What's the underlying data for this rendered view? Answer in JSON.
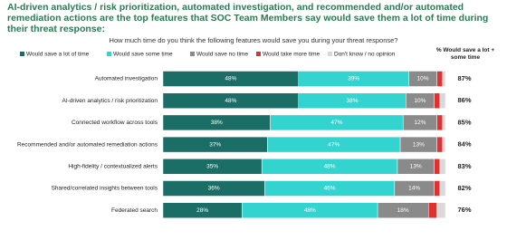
{
  "chart_data": {
    "type": "stacked-bar-horizontal",
    "title": "AI-driven analytics / risk prioritization, automated investigation, and recommended and/or automated remediation actions are the top features that SOC Team Members say would save them a lot of time during their threat response:",
    "subtitle": "How much time do you think the following features would save you during your threat response?",
    "categories": [
      "Automated investigation",
      "AI-driven analytics / risk prioritization",
      "Connected workflow across tools",
      "Recommended and/or automated remediation actions",
      "High-fidelity / contextualized alerts",
      "Shared/correlated insights between tools",
      "Federated search"
    ],
    "xlim": [
      0,
      100
    ],
    "series": [
      {
        "name": "Would save a lot of time",
        "color": "#1b6e66",
        "values": [
          48,
          48,
          38,
          37,
          35,
          36,
          28
        ],
        "value_labels": [
          "48%",
          "48%",
          "38%",
          "37%",
          "35%",
          "36%",
          "28%"
        ]
      },
      {
        "name": "Would save some time",
        "color": "#33d3cf",
        "values": [
          39,
          38,
          47,
          47,
          48,
          46,
          48
        ],
        "value_labels": [
          "39%",
          "38%",
          "47%",
          "47%",
          "48%",
          "46%",
          "48%"
        ]
      },
      {
        "name": "Would save no time",
        "color": "#8a8a8a",
        "values": [
          10,
          10,
          12,
          13,
          13,
          14,
          18
        ],
        "value_labels": [
          "10%",
          "10%",
          "12%",
          "13%",
          "13%",
          "14%",
          "18%"
        ]
      },
      {
        "name": "Would take more time",
        "color": "#e0302f",
        "values": [
          2,
          2,
          2,
          2,
          2,
          2,
          3
        ],
        "value_labels": [
          null,
          null,
          null,
          null,
          null,
          null,
          null
        ]
      },
      {
        "name": "Don't know / no opinion",
        "color": "#d9d9d9",
        "values": [
          1,
          2,
          1,
          1,
          2,
          2,
          3
        ],
        "value_labels": [
          null,
          null,
          null,
          null,
          null,
          null,
          null
        ]
      }
    ],
    "totals": {
      "title": "% Would save a lot + some time",
      "values": [
        87,
        86,
        85,
        84,
        83,
        82,
        76
      ],
      "value_labels": [
        "87%",
        "86%",
        "85%",
        "84%",
        "83%",
        "82%",
        "76%"
      ]
    }
  }
}
